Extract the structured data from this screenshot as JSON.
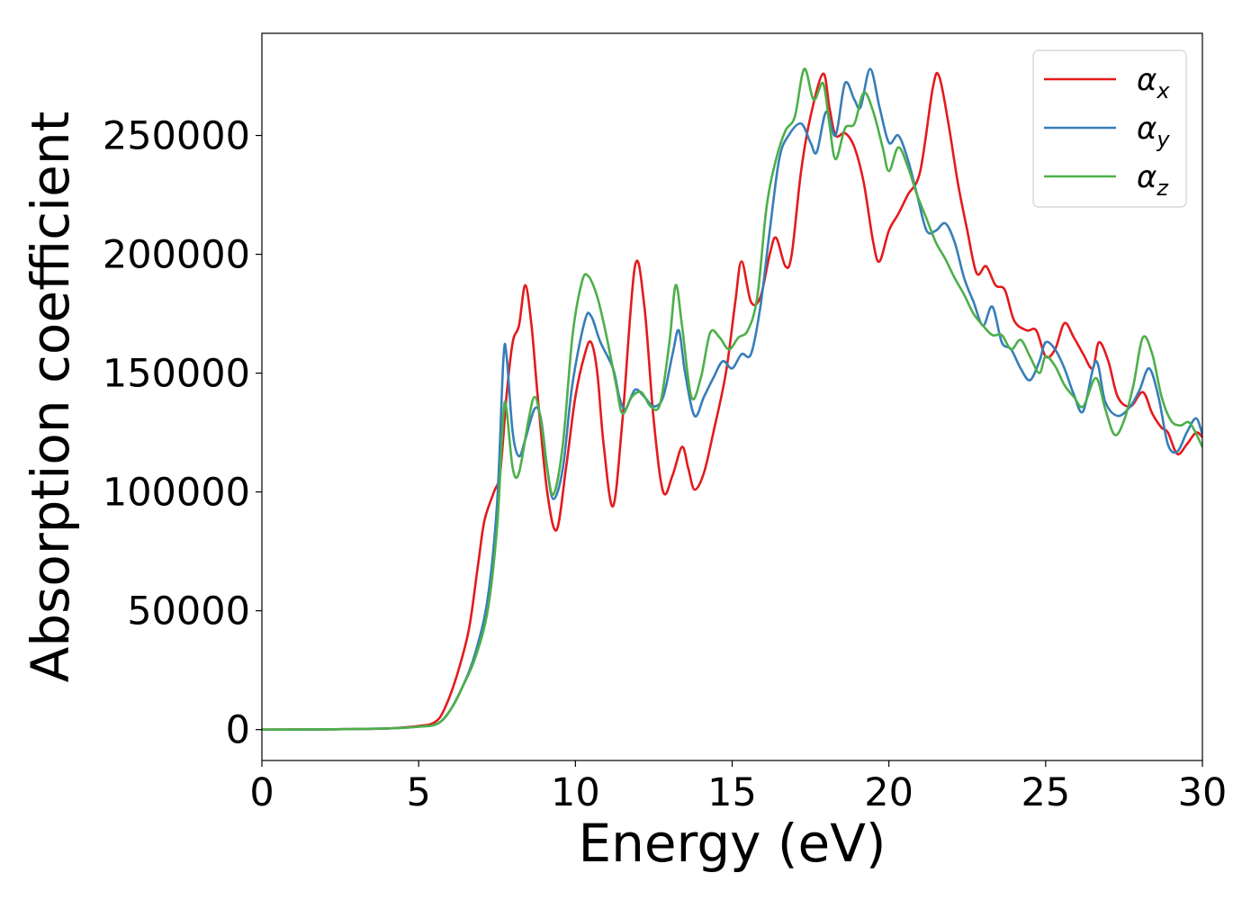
{
  "chart_data": {
    "type": "line",
    "xlabel": "Energy (eV)",
    "ylabel": "Absorption coefficient",
    "xlim": [
      0,
      30
    ],
    "ylim": [
      -13000,
      293000
    ],
    "xticks": [
      0,
      5,
      10,
      15,
      20,
      25,
      30
    ],
    "yticks": [
      0,
      50000,
      100000,
      150000,
      200000,
      250000
    ],
    "grid": false,
    "legend_position": "top-right",
    "series": [
      {
        "name": "α",
        "subscript": "x",
        "color": "#e41a1c",
        "points": [
          [
            0,
            0
          ],
          [
            2,
            100
          ],
          [
            4,
            500
          ],
          [
            5,
            1500
          ],
          [
            5.5,
            3000
          ],
          [
            5.8,
            8000
          ],
          [
            6.2,
            22000
          ],
          [
            6.6,
            42000
          ],
          [
            6.9,
            70000
          ],
          [
            7.1,
            88000
          ],
          [
            7.4,
            100000
          ],
          [
            7.6,
            108000
          ],
          [
            7.8,
            140000
          ],
          [
            8.0,
            163000
          ],
          [
            8.2,
            170000
          ],
          [
            8.4,
            187000
          ],
          [
            8.6,
            170000
          ],
          [
            8.8,
            140000
          ],
          [
            9.1,
            100000
          ],
          [
            9.4,
            84000
          ],
          [
            9.7,
            110000
          ],
          [
            10.0,
            140000
          ],
          [
            10.3,
            158000
          ],
          [
            10.5,
            163000
          ],
          [
            10.7,
            150000
          ],
          [
            10.9,
            120000
          ],
          [
            11.2,
            94000
          ],
          [
            11.5,
            130000
          ],
          [
            11.9,
            195000
          ],
          [
            12.2,
            178000
          ],
          [
            12.5,
            130000
          ],
          [
            12.8,
            100000
          ],
          [
            13.1,
            107000
          ],
          [
            13.4,
            119000
          ],
          [
            13.6,
            110000
          ],
          [
            13.8,
            101000
          ],
          [
            14.1,
            108000
          ],
          [
            14.4,
            125000
          ],
          [
            14.8,
            150000
          ],
          [
            15.1,
            180000
          ],
          [
            15.3,
            197000
          ],
          [
            15.6,
            180000
          ],
          [
            15.9,
            182000
          ],
          [
            16.2,
            200000
          ],
          [
            16.4,
            207000
          ],
          [
            16.7,
            195000
          ],
          [
            16.9,
            200000
          ],
          [
            17.2,
            235000
          ],
          [
            17.5,
            258000
          ],
          [
            17.9,
            276000
          ],
          [
            18.1,
            262000
          ],
          [
            18.3,
            250000
          ],
          [
            18.6,
            251000
          ],
          [
            18.9,
            245000
          ],
          [
            19.2,
            230000
          ],
          [
            19.5,
            205000
          ],
          [
            19.7,
            197000
          ],
          [
            20.0,
            210000
          ],
          [
            20.3,
            217000
          ],
          [
            20.6,
            225000
          ],
          [
            21.0,
            235000
          ],
          [
            21.4,
            270000
          ],
          [
            21.6,
            275000
          ],
          [
            21.9,
            255000
          ],
          [
            22.2,
            230000
          ],
          [
            22.5,
            210000
          ],
          [
            22.8,
            192000
          ],
          [
            23.1,
            195000
          ],
          [
            23.4,
            187000
          ],
          [
            23.7,
            185000
          ],
          [
            24.0,
            172000
          ],
          [
            24.4,
            168000
          ],
          [
            24.7,
            168000
          ],
          [
            25.0,
            157000
          ],
          [
            25.3,
            160000
          ],
          [
            25.6,
            171000
          ],
          [
            25.9,
            165000
          ],
          [
            26.2,
            158000
          ],
          [
            26.5,
            152000
          ],
          [
            26.7,
            163000
          ],
          [
            27.0,
            155000
          ],
          [
            27.3,
            140000
          ],
          [
            27.7,
            136000
          ],
          [
            28.1,
            142000
          ],
          [
            28.4,
            133000
          ],
          [
            28.7,
            127000
          ],
          [
            28.9,
            125000
          ],
          [
            29.2,
            116000
          ],
          [
            29.5,
            120000
          ],
          [
            29.8,
            125000
          ],
          [
            30.0,
            123000
          ]
        ]
      },
      {
        "name": "α",
        "subscript": "y",
        "color": "#377eb8",
        "points": [
          [
            0,
            0
          ],
          [
            2,
            100
          ],
          [
            4,
            500
          ],
          [
            5,
            1200
          ],
          [
            5.6,
            2500
          ],
          [
            6.0,
            8000
          ],
          [
            6.4,
            18000
          ],
          [
            6.8,
            32000
          ],
          [
            7.2,
            55000
          ],
          [
            7.5,
            95000
          ],
          [
            7.7,
            155000
          ],
          [
            7.8,
            158000
          ],
          [
            8.0,
            125000
          ],
          [
            8.2,
            115000
          ],
          [
            8.4,
            122000
          ],
          [
            8.7,
            135000
          ],
          [
            8.9,
            131000
          ],
          [
            9.1,
            110000
          ],
          [
            9.3,
            97000
          ],
          [
            9.6,
            110000
          ],
          [
            9.9,
            145000
          ],
          [
            10.3,
            172000
          ],
          [
            10.5,
            174000
          ],
          [
            10.8,
            163000
          ],
          [
            11.2,
            152000
          ],
          [
            11.4,
            140000
          ],
          [
            11.6,
            135000
          ],
          [
            11.9,
            143000
          ],
          [
            12.2,
            140000
          ],
          [
            12.5,
            136000
          ],
          [
            12.8,
            140000
          ],
          [
            13.1,
            158000
          ],
          [
            13.3,
            168000
          ],
          [
            13.5,
            150000
          ],
          [
            13.8,
            132000
          ],
          [
            14.1,
            140000
          ],
          [
            14.4,
            148000
          ],
          [
            14.7,
            155000
          ],
          [
            15.0,
            152000
          ],
          [
            15.3,
            158000
          ],
          [
            15.6,
            158000
          ],
          [
            15.9,
            178000
          ],
          [
            16.2,
            210000
          ],
          [
            16.5,
            240000
          ],
          [
            16.8,
            250000
          ],
          [
            17.2,
            255000
          ],
          [
            17.5,
            247000
          ],
          [
            17.7,
            243000
          ],
          [
            18.0,
            260000
          ],
          [
            18.3,
            250000
          ],
          [
            18.6,
            272000
          ],
          [
            18.9,
            265000
          ],
          [
            19.1,
            262000
          ],
          [
            19.4,
            278000
          ],
          [
            19.7,
            262000
          ],
          [
            20.0,
            247000
          ],
          [
            20.3,
            250000
          ],
          [
            20.6,
            240000
          ],
          [
            20.9,
            225000
          ],
          [
            21.2,
            210000
          ],
          [
            21.5,
            210000
          ],
          [
            21.8,
            213000
          ],
          [
            22.1,
            205000
          ],
          [
            22.4,
            190000
          ],
          [
            22.7,
            180000
          ],
          [
            23.0,
            170000
          ],
          [
            23.3,
            178000
          ],
          [
            23.6,
            163000
          ],
          [
            23.9,
            160000
          ],
          [
            24.2,
            152000
          ],
          [
            24.5,
            147000
          ],
          [
            24.8,
            155000
          ],
          [
            25.0,
            163000
          ],
          [
            25.3,
            160000
          ],
          [
            25.6,
            152000
          ],
          [
            25.9,
            141000
          ],
          [
            26.2,
            134000
          ],
          [
            26.6,
            155000
          ],
          [
            26.9,
            138000
          ],
          [
            27.3,
            132000
          ],
          [
            27.7,
            136000
          ],
          [
            28.0,
            143000
          ],
          [
            28.3,
            152000
          ],
          [
            28.6,
            140000
          ],
          [
            28.9,
            120000
          ],
          [
            29.2,
            117000
          ],
          [
            29.5,
            125000
          ],
          [
            29.8,
            131000
          ],
          [
            30.0,
            124000
          ]
        ]
      },
      {
        "name": "α",
        "subscript": "z",
        "color": "#4daf4a",
        "points": [
          [
            0,
            0
          ],
          [
            2,
            100
          ],
          [
            4,
            500
          ],
          [
            5,
            1200
          ],
          [
            5.6,
            2500
          ],
          [
            6.0,
            8000
          ],
          [
            6.4,
            18000
          ],
          [
            6.8,
            30000
          ],
          [
            7.2,
            50000
          ],
          [
            7.5,
            85000
          ],
          [
            7.7,
            132000
          ],
          [
            7.8,
            135000
          ],
          [
            8.0,
            110000
          ],
          [
            8.2,
            108000
          ],
          [
            8.5,
            130000
          ],
          [
            8.7,
            140000
          ],
          [
            8.9,
            130000
          ],
          [
            9.1,
            110000
          ],
          [
            9.3,
            99000
          ],
          [
            9.6,
            120000
          ],
          [
            9.9,
            165000
          ],
          [
            10.2,
            188000
          ],
          [
            10.4,
            191000
          ],
          [
            10.7,
            182000
          ],
          [
            11.0,
            165000
          ],
          [
            11.3,
            145000
          ],
          [
            11.5,
            133000
          ],
          [
            11.8,
            140000
          ],
          [
            12.1,
            142000
          ],
          [
            12.4,
            136000
          ],
          [
            12.7,
            137000
          ],
          [
            13.0,
            163000
          ],
          [
            13.2,
            187000
          ],
          [
            13.4,
            170000
          ],
          [
            13.7,
            140000
          ],
          [
            14.0,
            148000
          ],
          [
            14.3,
            167000
          ],
          [
            14.6,
            165000
          ],
          [
            14.9,
            160000
          ],
          [
            15.2,
            165000
          ],
          [
            15.5,
            168000
          ],
          [
            15.8,
            182000
          ],
          [
            16.1,
            220000
          ],
          [
            16.4,
            240000
          ],
          [
            16.7,
            252000
          ],
          [
            17.0,
            258000
          ],
          [
            17.3,
            278000
          ],
          [
            17.6,
            265000
          ],
          [
            17.9,
            272000
          ],
          [
            18.1,
            255000
          ],
          [
            18.3,
            240000
          ],
          [
            18.6,
            253000
          ],
          [
            18.9,
            255000
          ],
          [
            19.2,
            268000
          ],
          [
            19.5,
            260000
          ],
          [
            19.8,
            245000
          ],
          [
            20.0,
            235000
          ],
          [
            20.3,
            245000
          ],
          [
            20.6,
            237000
          ],
          [
            20.9,
            225000
          ],
          [
            21.2,
            215000
          ],
          [
            21.5,
            205000
          ],
          [
            21.8,
            198000
          ],
          [
            22.1,
            190000
          ],
          [
            22.4,
            183000
          ],
          [
            22.7,
            175000
          ],
          [
            23.0,
            170000
          ],
          [
            23.3,
            166000
          ],
          [
            23.6,
            166000
          ],
          [
            23.9,
            160000
          ],
          [
            24.2,
            164000
          ],
          [
            24.5,
            157000
          ],
          [
            24.8,
            150000
          ],
          [
            25.0,
            157000
          ],
          [
            25.3,
            153000
          ],
          [
            25.6,
            145000
          ],
          [
            25.9,
            140000
          ],
          [
            26.2,
            136000
          ],
          [
            26.6,
            148000
          ],
          [
            26.9,
            135000
          ],
          [
            27.2,
            124000
          ],
          [
            27.5,
            130000
          ],
          [
            27.8,
            145000
          ],
          [
            28.1,
            165000
          ],
          [
            28.4,
            158000
          ],
          [
            28.7,
            140000
          ],
          [
            29.0,
            130000
          ],
          [
            29.3,
            128000
          ],
          [
            29.6,
            129000
          ],
          [
            30.0,
            119000
          ]
        ]
      }
    ]
  }
}
